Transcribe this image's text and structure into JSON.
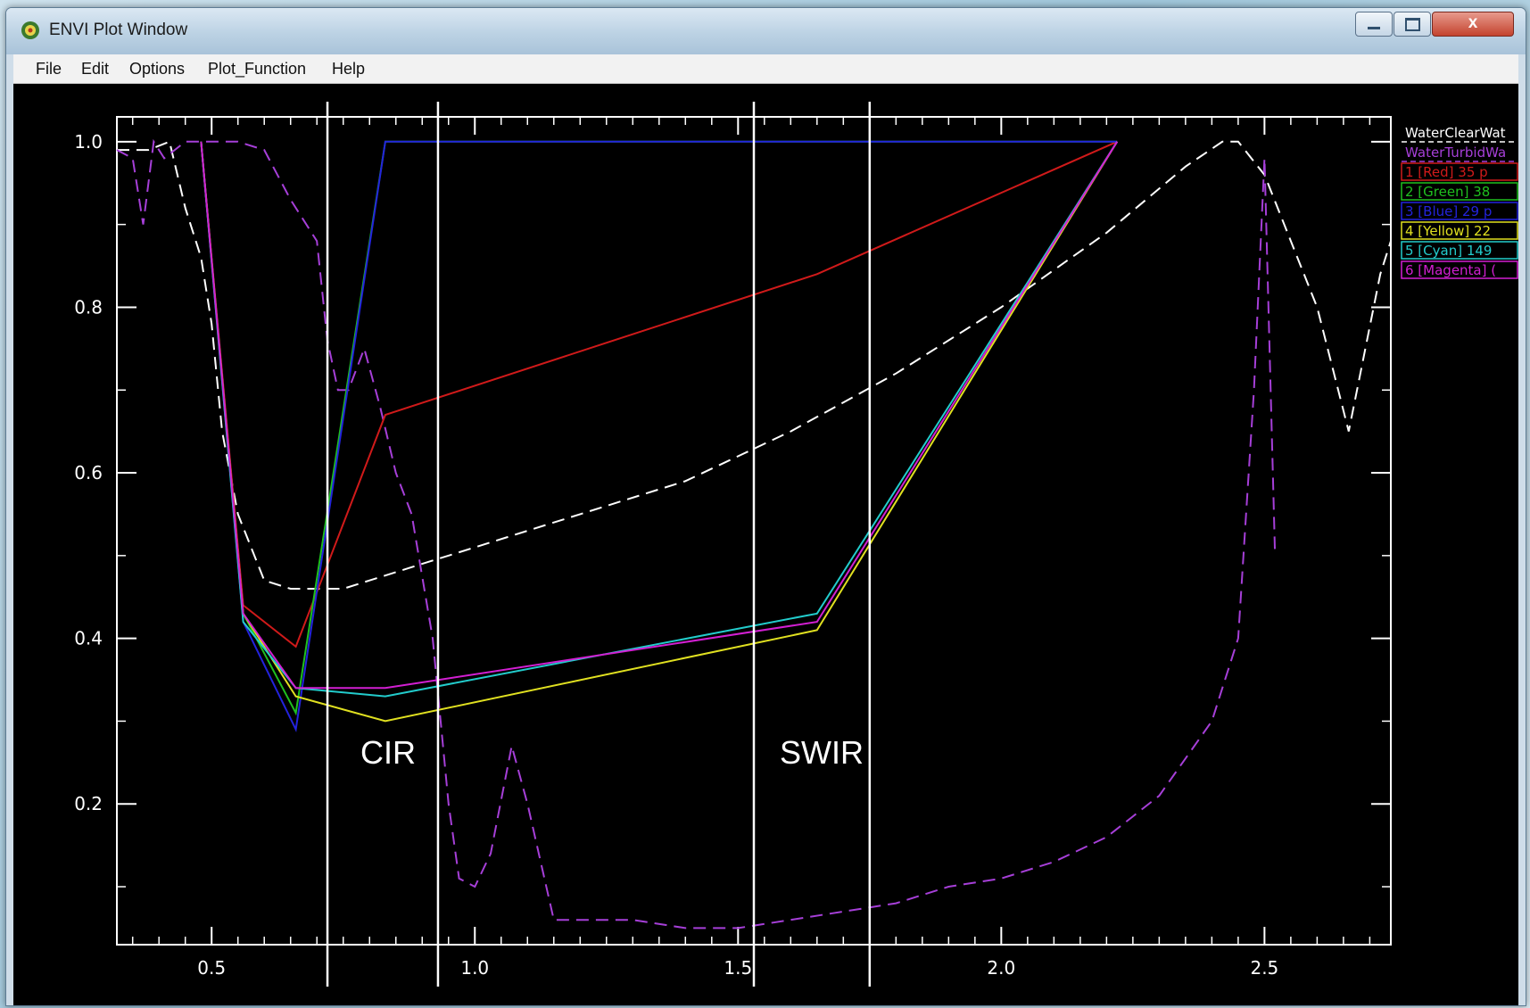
{
  "window": {
    "title": "ENVI Plot Window",
    "icon": "envi-app-icon",
    "controls": {
      "close_label": "x"
    }
  },
  "menu": [
    "File",
    "Edit",
    "Options",
    "Plot_Function",
    "Help"
  ],
  "annotations": {
    "cir_label": "CIR",
    "swir_label": "SWIR"
  },
  "chart_data": {
    "type": "line",
    "xlim": [
      0.32,
      2.74
    ],
    "ylim": [
      0.03,
      1.03
    ],
    "xticks": [
      0.5,
      1.0,
      1.5,
      2.0,
      2.5
    ],
    "xtick_labels": [
      "0.5",
      "1.0",
      "1.5",
      "2.0",
      "2.5"
    ],
    "yticks": [
      0.2,
      0.4,
      0.6,
      0.8,
      1.0
    ],
    "ytick_labels": [
      "0.2",
      "0.4",
      "0.6",
      "0.8",
      "1.0"
    ],
    "title": "",
    "xlabel": "",
    "ylabel": "",
    "legend_position": "right",
    "vertical_lines": [
      {
        "x": 0.72,
        "label": "CIR"
      },
      {
        "x": 0.93,
        "label": "CIR"
      },
      {
        "x": 1.53,
        "label": "SWIR"
      },
      {
        "x": 1.75,
        "label": "SWIR"
      }
    ],
    "series": [
      {
        "name": "WaterClearWat",
        "color": "#ffffff",
        "dash": "dashed",
        "x": [
          0.32,
          0.38,
          0.42,
          0.45,
          0.48,
          0.5,
          0.52,
          0.55,
          0.6,
          0.65,
          0.7,
          0.75,
          0.8,
          0.9,
          1.0,
          1.2,
          1.4,
          1.6,
          1.8,
          2.0,
          2.2,
          2.35,
          2.42,
          2.45,
          2.5,
          2.55,
          2.6,
          2.66,
          2.72,
          2.74
        ],
        "y": [
          0.99,
          0.99,
          1.0,
          0.92,
          0.86,
          0.78,
          0.65,
          0.55,
          0.47,
          0.46,
          0.46,
          0.46,
          0.47,
          0.49,
          0.51,
          0.55,
          0.59,
          0.65,
          0.72,
          0.8,
          0.89,
          0.97,
          1.0,
          1.0,
          0.96,
          0.88,
          0.8,
          0.65,
          0.84,
          0.88
        ]
      },
      {
        "name": "WaterTurbidWa",
        "color": "#a63fd8",
        "dash": "dashed",
        "x": [
          0.32,
          0.35,
          0.37,
          0.39,
          0.41,
          0.45,
          0.5,
          0.55,
          0.6,
          0.65,
          0.7,
          0.72,
          0.74,
          0.76,
          0.79,
          0.82,
          0.85,
          0.88,
          0.92,
          0.95,
          0.97,
          1.0,
          1.03,
          1.07,
          1.1,
          1.15,
          1.2,
          1.3,
          1.4,
          1.5,
          1.6,
          1.7,
          1.8,
          1.9,
          2.0,
          2.1,
          2.2,
          2.3,
          2.4,
          2.45,
          2.48,
          2.5,
          2.52
        ],
        "y": [
          0.99,
          0.98,
          0.9,
          1.0,
          0.98,
          1.0,
          1.0,
          1.0,
          0.99,
          0.93,
          0.88,
          0.76,
          0.7,
          0.7,
          0.75,
          0.68,
          0.6,
          0.55,
          0.4,
          0.2,
          0.11,
          0.1,
          0.14,
          0.27,
          0.2,
          0.06,
          0.06,
          0.06,
          0.05,
          0.05,
          0.06,
          0.07,
          0.08,
          0.1,
          0.11,
          0.13,
          0.16,
          0.21,
          0.3,
          0.4,
          0.7,
          0.98,
          0.5
        ]
      },
      {
        "name": "1 [Red] 35",
        "color": "#d01a1a",
        "dash": "solid",
        "x": [
          0.48,
          0.56,
          0.66,
          0.83,
          1.65,
          2.22
        ],
        "y": [
          1.0,
          0.44,
          0.39,
          0.67,
          0.84,
          1.0
        ]
      },
      {
        "name": "2 [Green] 38",
        "color": "#1fc01f",
        "dash": "solid",
        "x": [
          0.48,
          0.56,
          0.66,
          0.83,
          1.65,
          2.22
        ],
        "y": [
          1.0,
          0.43,
          0.31,
          1.0,
          1.0,
          1.0
        ]
      },
      {
        "name": "3 [Blue] 29",
        "color": "#2323dd",
        "dash": "solid",
        "x": [
          0.48,
          0.56,
          0.66,
          0.83,
          1.65,
          2.22
        ],
        "y": [
          1.0,
          0.42,
          0.29,
          1.0,
          1.0,
          1.0
        ]
      },
      {
        "name": "4 [Yellow] 22",
        "color": "#e0e020",
        "dash": "solid",
        "x": [
          0.48,
          0.56,
          0.66,
          0.83,
          1.65,
          2.22
        ],
        "y": [
          1.0,
          0.43,
          0.33,
          0.3,
          0.41,
          1.0
        ]
      },
      {
        "name": "5 [Cyan] 149",
        "color": "#22cccc",
        "dash": "solid",
        "x": [
          0.48,
          0.56,
          0.66,
          0.83,
          1.65,
          2.22
        ],
        "y": [
          1.0,
          0.42,
          0.34,
          0.33,
          0.43,
          1.0
        ]
      },
      {
        "name": "6 [Magenta]",
        "color": "#d21fd2",
        "dash": "solid",
        "x": [
          0.48,
          0.56,
          0.66,
          0.83,
          1.65,
          2.22
        ],
        "y": [
          1.0,
          0.43,
          0.34,
          0.34,
          0.42,
          1.0
        ]
      }
    ],
    "legend": [
      {
        "label": "WaterClearWat",
        "color": "#ffffff",
        "boxed": false
      },
      {
        "label": "WaterTurbidWa",
        "color": "#a63fd8",
        "boxed": false
      },
      {
        "label": "1 [Red] 35 p",
        "color": "#d01a1a",
        "boxed": true
      },
      {
        "label": "2 [Green] 38",
        "color": "#1fc01f",
        "boxed": true
      },
      {
        "label": "3 [Blue] 29 p",
        "color": "#2323dd",
        "boxed": true
      },
      {
        "label": "4 [Yellow] 22",
        "color": "#e0e020",
        "boxed": true
      },
      {
        "label": "5 [Cyan] 149",
        "color": "#22cccc",
        "boxed": true
      },
      {
        "label": "6 [Magenta] (",
        "color": "#d21fd2",
        "boxed": true
      }
    ]
  }
}
